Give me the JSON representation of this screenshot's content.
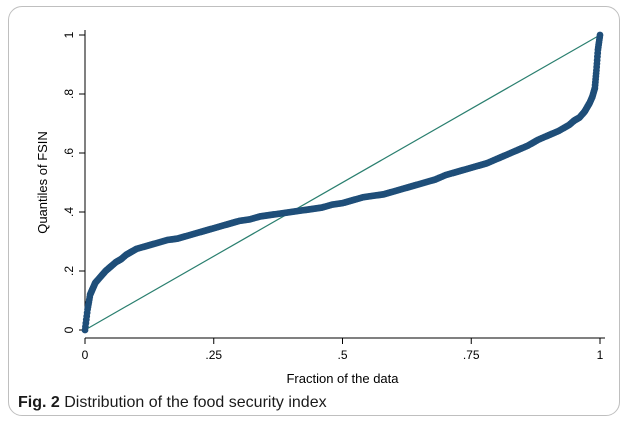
{
  "caption": {
    "label": "Fig. 2",
    "text": "Distribution of the food security index"
  },
  "colors": {
    "points": "#1f4e79",
    "reference_line": "#2a7f6f",
    "axis": "#000000"
  },
  "chart_data": {
    "type": "scatter",
    "title": "",
    "xlabel": "Fraction of the data",
    "ylabel": "Quantiles of FSIN",
    "xlim": [
      0,
      1
    ],
    "ylim": [
      0,
      1
    ],
    "x_ticks": [
      0,
      0.25,
      0.5,
      0.75,
      1
    ],
    "x_tick_labels": [
      "0",
      ".25",
      ".5",
      ".75",
      "1"
    ],
    "y_ticks": [
      0,
      0.2,
      0.4,
      0.6,
      0.8,
      1
    ],
    "y_tick_labels": [
      "0",
      ".2",
      ".4",
      ".6",
      ".8",
      "1"
    ],
    "grid": false,
    "reference_line": {
      "x": [
        0,
        1
      ],
      "y": [
        0,
        1
      ]
    },
    "series": [
      {
        "x": [
          0.0,
          0.005,
          0.01,
          0.015,
          0.02,
          0.03,
          0.04,
          0.05,
          0.06,
          0.07,
          0.08,
          0.09,
          0.1,
          0.12,
          0.14,
          0.16,
          0.18,
          0.2,
          0.22,
          0.24,
          0.26,
          0.28,
          0.3,
          0.32,
          0.34,
          0.36,
          0.38,
          0.4,
          0.42,
          0.44,
          0.46,
          0.48,
          0.5,
          0.52,
          0.54,
          0.56,
          0.58,
          0.6,
          0.62,
          0.64,
          0.66,
          0.68,
          0.7,
          0.72,
          0.74,
          0.76,
          0.78,
          0.8,
          0.82,
          0.84,
          0.86,
          0.88,
          0.9,
          0.92,
          0.94,
          0.95,
          0.96,
          0.97,
          0.975,
          0.98,
          0.985,
          0.99,
          0.993,
          0.996,
          1.0
        ],
        "values": [
          0.0,
          0.07,
          0.12,
          0.14,
          0.16,
          0.18,
          0.2,
          0.215,
          0.23,
          0.24,
          0.255,
          0.265,
          0.275,
          0.285,
          0.295,
          0.305,
          0.31,
          0.32,
          0.33,
          0.34,
          0.35,
          0.36,
          0.37,
          0.375,
          0.385,
          0.39,
          0.395,
          0.4,
          0.405,
          0.41,
          0.415,
          0.425,
          0.43,
          0.44,
          0.45,
          0.455,
          0.46,
          0.47,
          0.48,
          0.49,
          0.5,
          0.51,
          0.525,
          0.535,
          0.545,
          0.555,
          0.565,
          0.58,
          0.595,
          0.61,
          0.625,
          0.645,
          0.66,
          0.675,
          0.695,
          0.71,
          0.72,
          0.74,
          0.755,
          0.77,
          0.79,
          0.82,
          0.88,
          0.95,
          1.0
        ]
      }
    ]
  }
}
